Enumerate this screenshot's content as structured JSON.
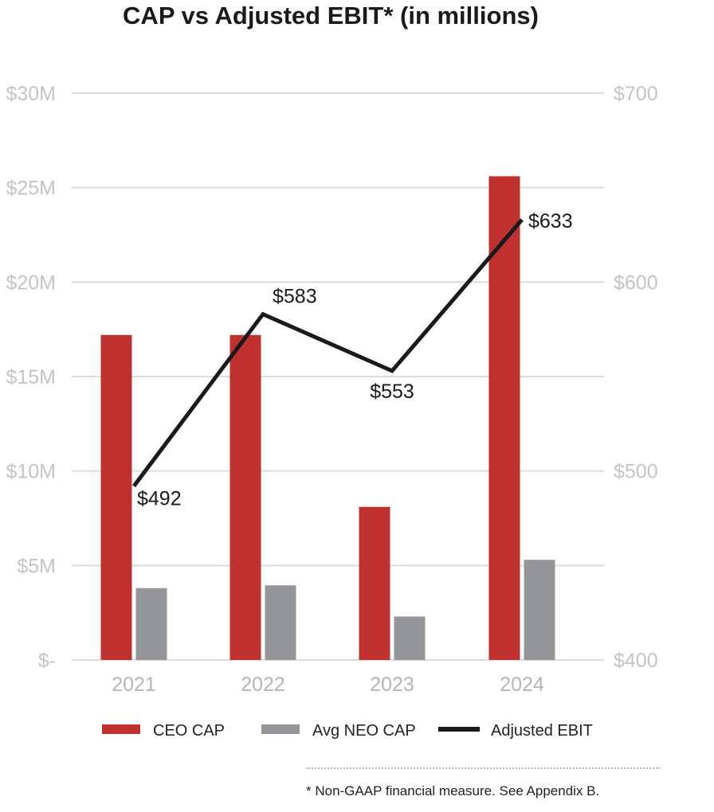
{
  "chart_data": {
    "type": "bar",
    "title": "CAP vs Adjusted EBIT* (in millions)",
    "categories": [
      "2021",
      "2022",
      "2023",
      "2024"
    ],
    "series": [
      {
        "name": "CEO CAP",
        "type": "bar",
        "axis": "left",
        "color": "#c0302e",
        "values": [
          17.2,
          17.2,
          8.1,
          25.6
        ]
      },
      {
        "name": "Avg NEO CAP",
        "type": "bar",
        "axis": "left",
        "color": "#939598",
        "values": [
          3.8,
          3.95,
          2.3,
          5.3
        ]
      },
      {
        "name": "Adjusted EBIT",
        "type": "line",
        "axis": "right",
        "color": "#1a1a1a",
        "values": [
          492,
          583,
          553,
          633
        ],
        "labels": [
          "$492",
          "$583",
          "$553",
          "$633"
        ]
      }
    ],
    "left_axis": {
      "ylim": [
        0,
        30
      ],
      "ticks": [
        0,
        5,
        10,
        15,
        20,
        25,
        30
      ],
      "tick_labels": [
        "$-",
        "$5M",
        "$10M",
        "$15M",
        "$20M",
        "$25M",
        "$30M"
      ]
    },
    "right_axis": {
      "ylim": [
        400,
        700
      ],
      "ticks": [
        400,
        500,
        600,
        700
      ],
      "tick_labels": [
        "$400",
        "$500",
        "$600",
        "$700"
      ]
    },
    "grid": true,
    "legend": [
      "CEO CAP",
      "Avg NEO CAP",
      "Adjusted EBIT"
    ],
    "legend_position": "bottom"
  },
  "footnote": "* Non-GAAP financial measure. See Appendix B."
}
